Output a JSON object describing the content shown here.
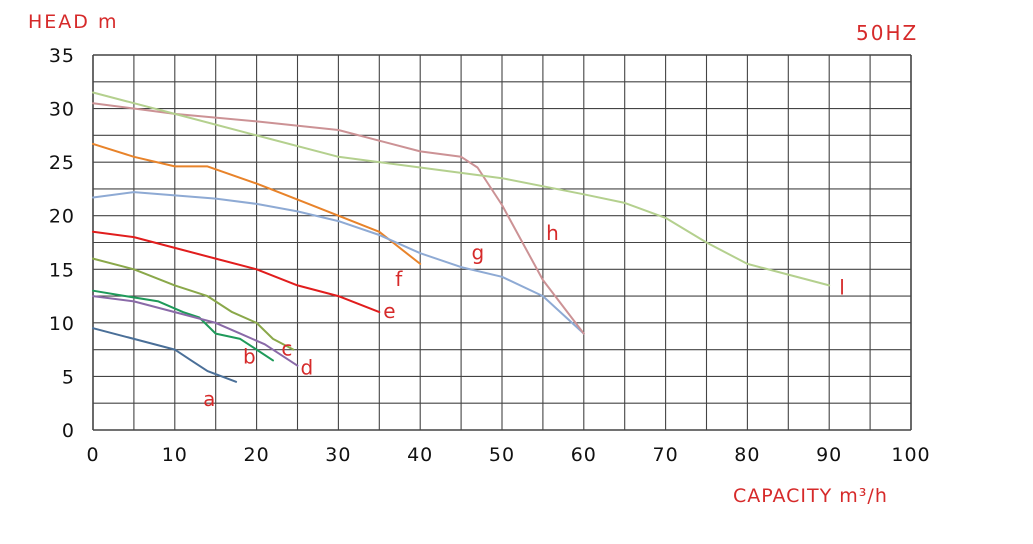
{
  "chart_data": {
    "type": "line",
    "title": "",
    "xlabel": "CAPACITY m³/h",
    "ylabel": "HEAD  m",
    "annotation": "50HZ",
    "xlim": [
      0,
      100
    ],
    "ylim": [
      0,
      35
    ],
    "grid": true,
    "x_ticks": [
      "0",
      "10",
      "20",
      "30",
      "40",
      "50",
      "60",
      "70",
      "80",
      "90",
      "100"
    ],
    "y_ticks": [
      "0",
      "5",
      "10",
      "15",
      "20",
      "25",
      "30",
      "35"
    ],
    "series": [
      {
        "name": "a",
        "color": "#4a6f98",
        "points": [
          [
            0,
            9.5
          ],
          [
            5,
            8.5
          ],
          [
            10,
            7.5
          ],
          [
            12,
            6.5
          ],
          [
            14,
            5.5
          ],
          [
            17.5,
            4.5
          ]
        ]
      },
      {
        "name": "b",
        "color": "#1f9a5a",
        "points": [
          [
            0,
            13
          ],
          [
            4,
            12.5
          ],
          [
            8,
            12
          ],
          [
            11,
            11
          ],
          [
            13,
            10.5
          ],
          [
            15,
            9
          ],
          [
            18,
            8.5
          ],
          [
            20,
            7.5
          ],
          [
            22,
            6.5
          ]
        ]
      },
      {
        "name": "c",
        "color": "#8aa84a",
        "points": [
          [
            0,
            16
          ],
          [
            5,
            15
          ],
          [
            10,
            13.5
          ],
          [
            14,
            12.5
          ],
          [
            17,
            11
          ],
          [
            20,
            10
          ],
          [
            22,
            8.5
          ],
          [
            24.5,
            7.5
          ]
        ]
      },
      {
        "name": "d",
        "color": "#8a6aa8",
        "points": [
          [
            0,
            12.5
          ],
          [
            5,
            12
          ],
          [
            10,
            11
          ],
          [
            15,
            10
          ],
          [
            18,
            9
          ],
          [
            21,
            8
          ],
          [
            25,
            6
          ]
        ]
      },
      {
        "name": "e",
        "color": "#e11d1d",
        "points": [
          [
            0,
            18.5
          ],
          [
            5,
            18
          ],
          [
            10,
            17
          ],
          [
            15,
            16
          ],
          [
            20,
            15
          ],
          [
            25,
            13.5
          ],
          [
            30,
            12.5
          ],
          [
            35,
            11
          ]
        ]
      },
      {
        "name": "f",
        "color": "#e8832a",
        "points": [
          [
            0,
            26.7
          ],
          [
            5,
            25.5
          ],
          [
            10,
            24.6
          ],
          [
            14,
            24.6
          ],
          [
            20,
            23
          ],
          [
            25,
            21.5
          ],
          [
            30,
            20
          ],
          [
            35,
            18.5
          ],
          [
            40,
            15.5
          ]
        ]
      },
      {
        "name": "g",
        "color": "#8eaad4",
        "points": [
          [
            0,
            21.7
          ],
          [
            5,
            22.2
          ],
          [
            10,
            21.9
          ],
          [
            15,
            21.6
          ],
          [
            20,
            21.1
          ],
          [
            25,
            20.4
          ],
          [
            30,
            19.5
          ],
          [
            35,
            18.2
          ],
          [
            40,
            16.5
          ],
          [
            45,
            15.2
          ],
          [
            50,
            14.3
          ],
          [
            55,
            12.5
          ],
          [
            60,
            9
          ]
        ]
      },
      {
        "name": "h",
        "color": "#cc9295",
        "points": [
          [
            0,
            30.5
          ],
          [
            10,
            29.5
          ],
          [
            20,
            28.8
          ],
          [
            30,
            28
          ],
          [
            35,
            27
          ],
          [
            40,
            26
          ],
          [
            45,
            25.5
          ],
          [
            47,
            24.5
          ],
          [
            50,
            21
          ],
          [
            55,
            14
          ],
          [
            60,
            9
          ]
        ]
      },
      {
        "name": "l",
        "color": "#b4d08e",
        "points": [
          [
            0,
            31.5
          ],
          [
            10,
            29.5
          ],
          [
            20,
            27.5
          ],
          [
            30,
            25.5
          ],
          [
            40,
            24.5
          ],
          [
            50,
            23.5
          ],
          [
            60,
            22
          ],
          [
            65,
            21.2
          ],
          [
            70,
            19.8
          ],
          [
            75,
            17.5
          ],
          [
            80,
            15.5
          ],
          [
            85,
            14.5
          ],
          [
            90,
            13.5
          ]
        ]
      }
    ]
  }
}
